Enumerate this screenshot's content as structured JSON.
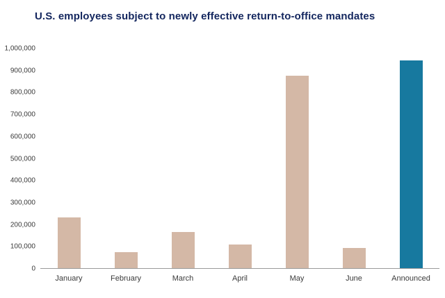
{
  "chart_data": {
    "type": "bar",
    "title": "U.S. employees subject to newly effective return-to-office mandates",
    "categories": [
      "January",
      "February",
      "March",
      "April",
      "May",
      "June",
      "Announced"
    ],
    "values": [
      232000,
      72000,
      165000,
      107000,
      878000,
      92000,
      945000
    ],
    "bar_colors": [
      "#d4b8a6",
      "#d4b8a6",
      "#d4b8a6",
      "#d4b8a6",
      "#d4b8a6",
      "#d4b8a6",
      "#17799f"
    ],
    "xlabel": "",
    "ylabel": "",
    "ylim": [
      0,
      1000000
    ],
    "ytick_step": 100000,
    "ytick_labels": [
      "0",
      "100,000",
      "200,000",
      "300,000",
      "400,000",
      "500,000",
      "600,000",
      "700,000",
      "800,000",
      "900,000",
      "1,000,000"
    ],
    "grid": false,
    "legend": false
  },
  "colors": {
    "title": "#13265e",
    "bar_default": "#d4b8a6",
    "bar_highlight": "#17799f",
    "axis_line": "#9a9a9a",
    "tick_text": "#3a3a3a",
    "background": "#ffffff"
  }
}
